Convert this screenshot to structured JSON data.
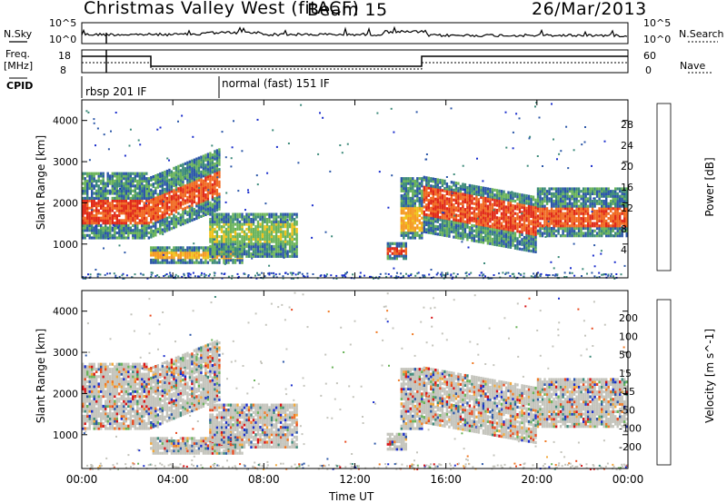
{
  "header": {
    "station": "Christmas Valley West (fitACF)",
    "beam": "Beam 15",
    "date": "26/Mar/2013"
  },
  "panels": {
    "nsky_label": "N.Sky",
    "nsky_ticks": [
      "10^5",
      "10^0"
    ],
    "nsearch_label": "N.Search",
    "nsearch_ticks": [
      "10^5",
      "10^0"
    ],
    "freq_label_line1": "Freq.",
    "freq_label_line2": "[MHz]",
    "freq_ticks": [
      "18",
      "8"
    ],
    "nave_label": "Nave",
    "nave_ticks": [
      "60",
      "0"
    ],
    "cpid_label": "CPID",
    "cpid_modes": [
      "rbsp 201 IF",
      "normal (fast) 151 IF"
    ]
  },
  "colors": {
    "power_scale": [
      "#1a2dcc",
      "#2c57a8",
      "#3d8a7a",
      "#6ab35a",
      "#f0c21a",
      "#f59a24",
      "#f06a22",
      "#e02a18"
    ],
    "velocity_scale": [
      "#1a2dcc",
      "#2c57a8",
      "#3d8a7a",
      "#6ab35a",
      "#c4c4bc",
      "#f2a83a",
      "#f07a24",
      "#e8491e",
      "#d81418"
    ]
  },
  "chart_data": [
    {
      "type": "heatmap",
      "title": "Power",
      "xlabel": "Time UT",
      "ylabel": "Slant Range [km]",
      "x_ticks": [
        "00:00",
        "04:00",
        "08:00",
        "12:00",
        "16:00",
        "20:00",
        "00:00"
      ],
      "x_range_hours": [
        0,
        24
      ],
      "y_ticks": [
        "1000",
        "2000",
        "3000",
        "4000"
      ],
      "ylim": [
        180,
        4500
      ],
      "colorbar_label": "Power [dB]",
      "colorbar_ticks": [
        "28",
        "24",
        "20",
        "16",
        "12",
        "8",
        "4"
      ],
      "colorbar_range": [
        0,
        32
      ]
    },
    {
      "type": "heatmap",
      "xlabel": "Time UT",
      "ylabel": "Slant Range [km]",
      "x_ticks": [
        "00:00",
        "04:00",
        "08:00",
        "12:00",
        "16:00",
        "20:00",
        "00:00"
      ],
      "x_range_hours": [
        0,
        24
      ],
      "y_ticks": [
        "1000",
        "2000",
        "3000",
        "4000"
      ],
      "ylim": [
        180,
        4500
      ],
      "colorbar_label": "Velocity [m s^-1]",
      "colorbar_ticks": [
        "200",
        "100",
        "50",
        "15",
        "-15",
        "-50",
        "-100",
        "-200"
      ],
      "colorbar_range": [
        -250,
        250
      ]
    }
  ]
}
